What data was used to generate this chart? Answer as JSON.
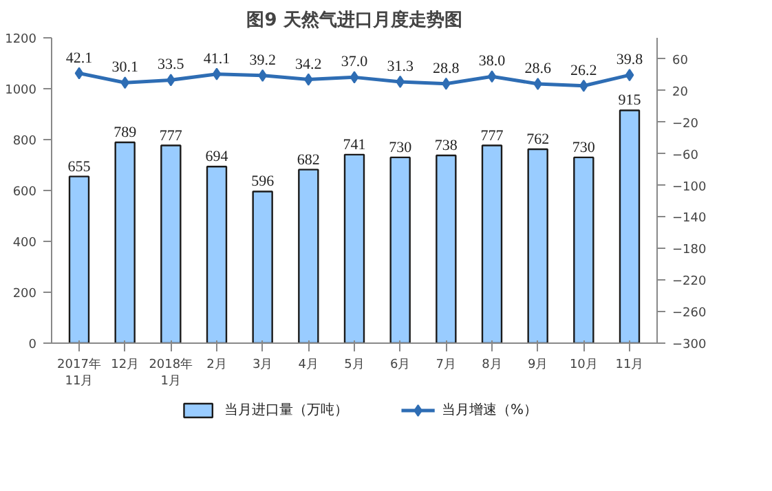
{
  "chart_data": {
    "type": "bar",
    "title": "图9 天然气进口月度走势图",
    "categories": [
      "2017年\n11月",
      "12月",
      "2018年\n1月",
      "2月",
      "3月",
      "4月",
      "5月",
      "6月",
      "7月",
      "8月",
      "9月",
      "10月",
      "11月"
    ],
    "series": [
      {
        "name": "当月进口量（万吨）",
        "color": "#99ccff",
        "values": [
          655,
          789,
          777,
          694,
          596,
          682,
          741,
          730,
          738,
          777,
          762,
          730,
          915
        ]
      },
      {
        "name": "当月增速（%）",
        "type": "line",
        "axis": "y2",
        "color": "#2e6db4",
        "marker": "diamond",
        "values": [
          42.1,
          30.1,
          33.5,
          41.1,
          39.2,
          34.2,
          37.0,
          31.3,
          28.8,
          38.0,
          28.6,
          26.2,
          39.8
        ],
        "value_labels": [
          "42.1",
          "30.1",
          "33.5",
          "41.1",
          "39.2",
          "34.2",
          "37.0",
          "31.3",
          "28.8",
          "38.0",
          "28.6",
          "26.2",
          "39.8"
        ]
      }
    ],
    "ylim": [
      0,
      1200
    ],
    "yticks": [
      0,
      200,
      400,
      600,
      800,
      1000,
      1200
    ],
    "y2lim": [
      -300,
      87
    ],
    "y2ticks": [
      -300,
      -260,
      -220,
      -180,
      -140,
      -100,
      -60,
      -20,
      20,
      60
    ],
    "data_labels": true,
    "grid": false,
    "legend": "bottom"
  }
}
